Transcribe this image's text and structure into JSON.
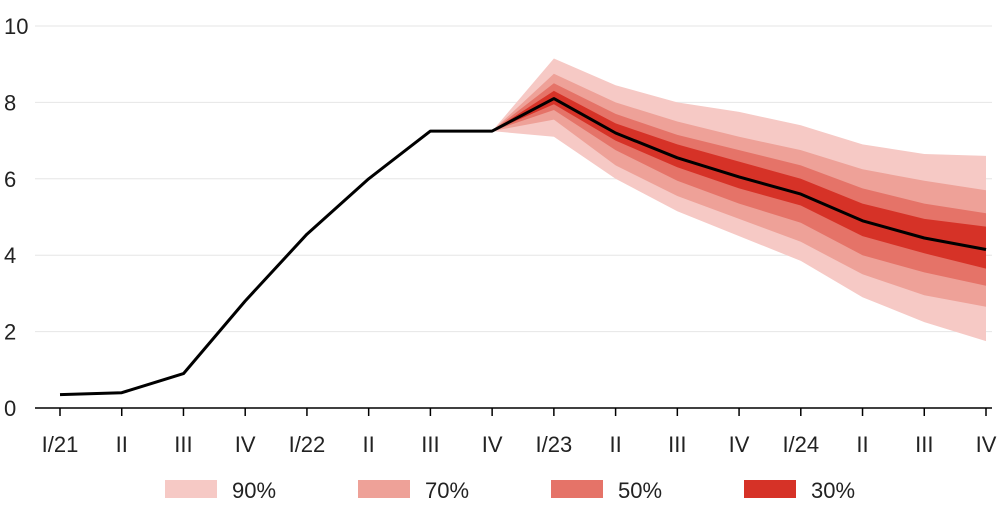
{
  "chart_data": {
    "type": "area",
    "title": "",
    "xlabel": "",
    "ylabel": "",
    "ylim": [
      0,
      10
    ],
    "yticks": [
      0,
      2,
      4,
      6,
      8,
      10
    ],
    "grid": "horizontal",
    "legend_position": "bottom",
    "categories": [
      "I/21",
      "II",
      "III",
      "IV",
      "I/22",
      "II",
      "III",
      "IV",
      "I/23",
      "II",
      "III",
      "IV",
      "I/24",
      "II",
      "III",
      "IV"
    ],
    "series": [
      {
        "name": "",
        "type": "line",
        "color": "#000000",
        "values": [
          0.35,
          0.4,
          0.9,
          2.8,
          4.55,
          6.0,
          7.25,
          7.25,
          8.1,
          7.2,
          6.55,
          6.05,
          5.6,
          4.9,
          4.45,
          4.15
        ]
      }
    ],
    "fan": {
      "start_index": 7,
      "bands": [
        {
          "name": "90%",
          "color": "#f6c9c5",
          "lower": [
            7.25,
            7.1,
            6.0,
            5.15,
            4.5,
            3.85,
            2.9,
            2.25,
            1.75
          ],
          "upper": [
            7.25,
            9.15,
            8.45,
            8.0,
            7.75,
            7.4,
            6.9,
            6.65,
            6.6
          ]
        },
        {
          "name": "70%",
          "color": "#eea198",
          "lower": [
            7.25,
            7.55,
            6.35,
            5.55,
            4.95,
            4.35,
            3.5,
            2.95,
            2.65
          ],
          "upper": [
            7.25,
            8.75,
            8.0,
            7.5,
            7.1,
            6.75,
            6.25,
            5.95,
            5.7
          ]
        },
        {
          "name": "50%",
          "color": "#e57368",
          "lower": [
            7.25,
            7.8,
            6.75,
            5.95,
            5.35,
            4.85,
            4.0,
            3.55,
            3.2
          ],
          "upper": [
            7.25,
            8.5,
            7.7,
            7.15,
            6.75,
            6.35,
            5.75,
            5.35,
            5.1
          ]
        },
        {
          "name": "30%",
          "color": "#d63227",
          "lower": [
            7.25,
            7.95,
            7.0,
            6.3,
            5.75,
            5.3,
            4.5,
            4.05,
            3.65
          ],
          "upper": [
            7.25,
            8.3,
            7.45,
            6.9,
            6.45,
            6.0,
            5.35,
            4.95,
            4.75
          ]
        }
      ]
    }
  }
}
